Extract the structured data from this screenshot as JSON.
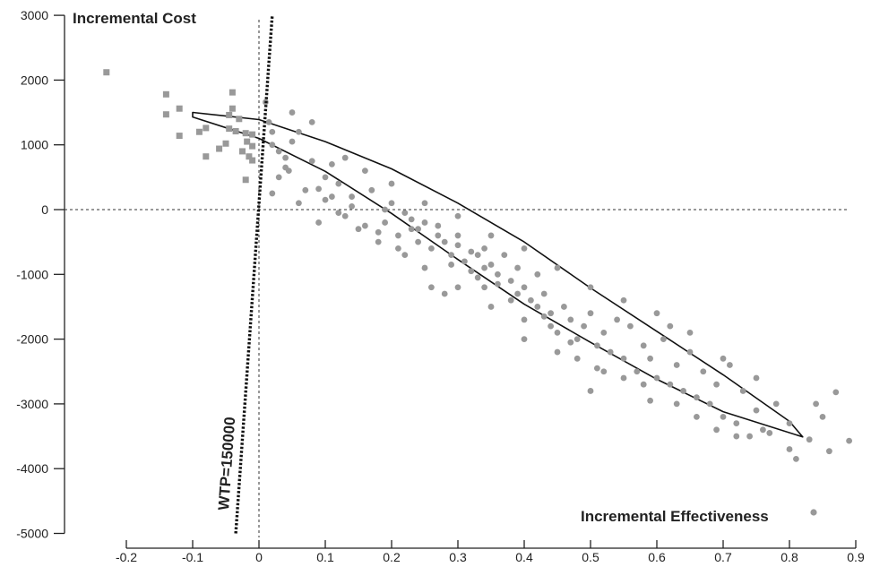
{
  "chart_data": {
    "type": "scatter",
    "title": "",
    "ylabel": "Incremental Cost",
    "xlabel": "Incremental Effectiveness",
    "xlim": [
      -0.25,
      0.9
    ],
    "ylim": [
      -5000,
      3000
    ],
    "x_ticks": [
      "-0.2",
      "-0.1",
      "0",
      "0.1",
      "0.2",
      "0.3",
      "0.4",
      "0.5",
      "0.6",
      "0.7",
      "0.8",
      "0.9"
    ],
    "y_ticks": [
      "3000",
      "2000",
      "1000",
      "0",
      "-1000",
      "-2000",
      "-3000",
      "-4000",
      "-5000"
    ],
    "grid": false,
    "reference_lines": {
      "x": 0,
      "y": 0,
      "style": "dotted"
    },
    "wtp_line": {
      "label": "WTP=150000",
      "points": [
        [
          -0.035,
          -5000
        ],
        [
          0.02,
          3000
        ]
      ]
    },
    "confidence_ellipse": {
      "points": [
        [
          -0.1,
          1500
        ],
        [
          0.0,
          1390
        ],
        [
          0.1,
          1050
        ],
        [
          0.2,
          630
        ],
        [
          0.3,
          100
        ],
        [
          0.4,
          -500
        ],
        [
          0.5,
          -1210
        ],
        [
          0.6,
          -1880
        ],
        [
          0.7,
          -2550
        ],
        [
          0.8,
          -3270
        ],
        [
          0.82,
          -3510
        ],
        [
          0.7,
          -3120
        ],
        [
          0.6,
          -2620
        ],
        [
          0.5,
          -2050
        ],
        [
          0.4,
          -1460
        ],
        [
          0.3,
          -770
        ],
        [
          0.2,
          -60
        ],
        [
          0.1,
          590
        ],
        [
          0.0,
          1100
        ],
        [
          -0.1,
          1430
        ]
      ]
    },
    "series": [
      {
        "marker": "square",
        "color": "#999999",
        "points": [
          [
            -0.23,
            2120
          ],
          [
            -0.14,
            1780
          ],
          [
            -0.14,
            1470
          ],
          [
            -0.12,
            1560
          ],
          [
            -0.12,
            1140
          ],
          [
            -0.09,
            1200
          ],
          [
            -0.08,
            1260
          ],
          [
            -0.08,
            820
          ],
          [
            -0.06,
            940
          ],
          [
            -0.05,
            1020
          ],
          [
            -0.045,
            1250
          ],
          [
            -0.045,
            1460
          ],
          [
            -0.04,
            1810
          ],
          [
            -0.04,
            1560
          ],
          [
            -0.035,
            1210
          ],
          [
            -0.03,
            1400
          ],
          [
            -0.025,
            900
          ],
          [
            -0.02,
            1180
          ],
          [
            -0.018,
            1050
          ],
          [
            -0.015,
            820
          ],
          [
            -0.01,
            980
          ],
          [
            -0.01,
            760
          ],
          [
            -0.01,
            1160
          ],
          [
            -0.02,
            460
          ]
        ]
      },
      {
        "marker": "circle",
        "color": "#999999",
        "points": [
          [
            0.01,
            1660
          ],
          [
            0.015,
            1350
          ],
          [
            0.02,
            1200
          ],
          [
            0.02,
            1000
          ],
          [
            0.03,
            900
          ],
          [
            0.04,
            800
          ],
          [
            0.05,
            1050
          ],
          [
            0.045,
            600
          ],
          [
            0.06,
            1200
          ],
          [
            0.08,
            1350
          ],
          [
            0.08,
            750
          ],
          [
            0.1,
            500
          ],
          [
            0.09,
            320
          ],
          [
            0.12,
            400
          ],
          [
            0.11,
            200
          ],
          [
            0.14,
            50
          ],
          [
            0.05,
            1500
          ],
          [
            0.03,
            500
          ],
          [
            0.02,
            250
          ],
          [
            0.06,
            100
          ],
          [
            0.09,
            -200
          ],
          [
            0.13,
            -100
          ],
          [
            0.16,
            -250
          ],
          [
            0.18,
            -350
          ],
          [
            0.17,
            300
          ],
          [
            0.2,
            100
          ],
          [
            0.22,
            -50
          ],
          [
            0.19,
            -200
          ],
          [
            0.21,
            -400
          ],
          [
            0.23,
            -300
          ],
          [
            0.24,
            -500
          ],
          [
            0.25,
            -200
          ],
          [
            0.26,
            -600
          ],
          [
            0.27,
            -250
          ],
          [
            0.28,
            -1300
          ],
          [
            0.26,
            -1200
          ],
          [
            0.29,
            -700
          ],
          [
            0.3,
            -550
          ],
          [
            0.31,
            -800
          ],
          [
            0.32,
            -950
          ],
          [
            0.3,
            -400
          ],
          [
            0.33,
            -700
          ],
          [
            0.34,
            -600
          ],
          [
            0.35,
            -850
          ],
          [
            0.36,
            -1000
          ],
          [
            0.33,
            -1050
          ],
          [
            0.34,
            -1200
          ],
          [
            0.37,
            -700
          ],
          [
            0.38,
            -1100
          ],
          [
            0.39,
            -900
          ],
          [
            0.4,
            -1200
          ],
          [
            0.41,
            -1400
          ],
          [
            0.42,
            -1000
          ],
          [
            0.4,
            -1700
          ],
          [
            0.42,
            -1500
          ],
          [
            0.43,
            -1300
          ],
          [
            0.44,
            -1600
          ],
          [
            0.45,
            -1900
          ],
          [
            0.46,
            -1500
          ],
          [
            0.47,
            -1700
          ],
          [
            0.48,
            -2000
          ],
          [
            0.49,
            -1800
          ],
          [
            0.5,
            -1600
          ],
          [
            0.51,
            -2100
          ],
          [
            0.52,
            -1900
          ],
          [
            0.53,
            -2200
          ],
          [
            0.54,
            -1700
          ],
          [
            0.55,
            -2300
          ],
          [
            0.56,
            -1800
          ],
          [
            0.57,
            -2500
          ],
          [
            0.58,
            -2100
          ],
          [
            0.59,
            -2300
          ],
          [
            0.6,
            -2600
          ],
          [
            0.61,
            -2000
          ],
          [
            0.62,
            -2700
          ],
          [
            0.63,
            -2400
          ],
          [
            0.64,
            -2800
          ],
          [
            0.65,
            -2200
          ],
          [
            0.66,
            -2900
          ],
          [
            0.67,
            -2500
          ],
          [
            0.68,
            -3000
          ],
          [
            0.69,
            -2700
          ],
          [
            0.7,
            -3200
          ],
          [
            0.71,
            -2400
          ],
          [
            0.72,
            -3300
          ],
          [
            0.73,
            -2800
          ],
          [
            0.74,
            -3500
          ],
          [
            0.75,
            -3100
          ],
          [
            0.76,
            -3400
          ],
          [
            0.78,
            -3000
          ],
          [
            0.8,
            -3700
          ],
          [
            0.81,
            -3850
          ],
          [
            0.83,
            -3550
          ],
          [
            0.85,
            -3200
          ],
          [
            0.87,
            -2820
          ],
          [
            0.89,
            -3570
          ],
          [
            0.86,
            -3730
          ],
          [
            0.84,
            -3000
          ],
          [
            0.8,
            -3300
          ],
          [
            0.77,
            -3450
          ],
          [
            0.55,
            -2600
          ],
          [
            0.5,
            -2800
          ],
          [
            0.45,
            -2200
          ],
          [
            0.4,
            -2000
          ],
          [
            0.35,
            -1500
          ],
          [
            0.3,
            -1200
          ],
          [
            0.25,
            -900
          ],
          [
            0.22,
            -700
          ],
          [
            0.18,
            -500
          ],
          [
            0.15,
            -300
          ],
          [
            0.12,
            -50
          ],
          [
            0.1,
            150
          ],
          [
            0.07,
            300
          ],
          [
            0.04,
            650
          ],
          [
            0.13,
            800
          ],
          [
            0.16,
            600
          ],
          [
            0.2,
            400
          ],
          [
            0.25,
            100
          ],
          [
            0.3,
            -100
          ],
          [
            0.35,
            -400
          ],
          [
            0.4,
            -600
          ],
          [
            0.45,
            -900
          ],
          [
            0.5,
            -1200
          ],
          [
            0.55,
            -1400
          ],
          [
            0.6,
            -1600
          ],
          [
            0.65,
            -1900
          ],
          [
            0.7,
            -2300
          ],
          [
            0.75,
            -2600
          ],
          [
            0.62,
            -1800
          ],
          [
            0.58,
            -2700
          ],
          [
            0.52,
            -2500
          ],
          [
            0.48,
            -2300
          ],
          [
            0.44,
            -1800
          ],
          [
            0.38,
            -1400
          ],
          [
            0.34,
            -900
          ],
          [
            0.28,
            -500
          ],
          [
            0.24,
            -300
          ],
          [
            0.19,
            0
          ],
          [
            0.14,
            200
          ],
          [
            0.11,
            700
          ],
          [
            0.66,
            -3200
          ],
          [
            0.69,
            -3400
          ],
          [
            0.72,
            -3500
          ],
          [
            0.63,
            -3000
          ],
          [
            0.59,
            -2950
          ],
          [
            0.51,
            -2450
          ],
          [
            0.47,
            -2050
          ],
          [
            0.43,
            -1650
          ],
          [
            0.39,
            -1300
          ],
          [
            0.36,
            -1150
          ],
          [
            0.32,
            -650
          ],
          [
            0.29,
            -850
          ],
          [
            0.27,
            -400
          ],
          [
            0.23,
            -150
          ],
          [
            0.21,
            -600
          ]
        ]
      }
    ]
  }
}
